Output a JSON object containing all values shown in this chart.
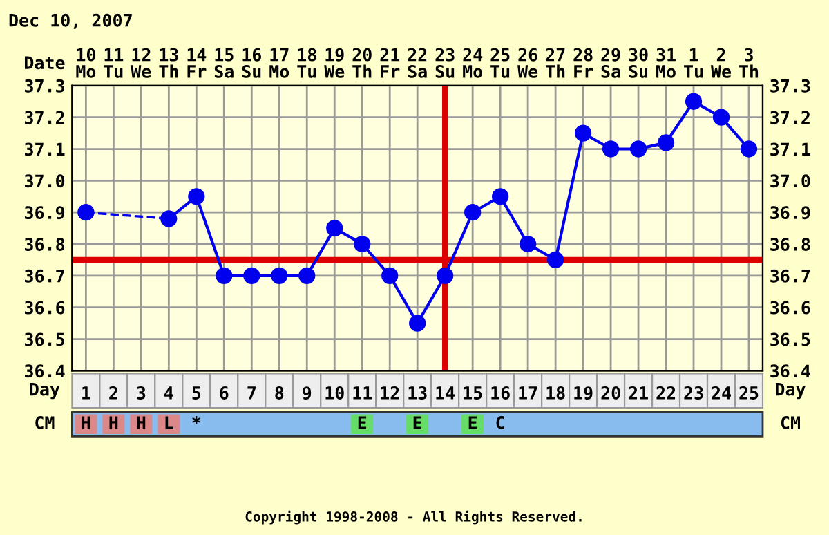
{
  "chart_data": {
    "type": "line",
    "title": "Dec 10, 2007",
    "xlabel": "Day",
    "categories": [
      "1",
      "2",
      "3",
      "4",
      "5",
      "6",
      "7",
      "8",
      "9",
      "10",
      "11",
      "12",
      "13",
      "14",
      "15",
      "16",
      "17",
      "18",
      "19",
      "20",
      "21",
      "22",
      "23",
      "24",
      "25"
    ],
    "series": [
      {
        "color": "#0000ee",
        "values": [
          36.9,
          null,
          null,
          36.88,
          36.95,
          36.7,
          36.7,
          36.7,
          36.7,
          36.85,
          36.8,
          36.7,
          36.55,
          36.7,
          36.9,
          36.95,
          36.8,
          36.75,
          37.15,
          37.1,
          37.1,
          37.12,
          37.25,
          37.2,
          37.1
        ]
      }
    ],
    "ylim": [
      36.4,
      37.3
    ],
    "yticks": [
      36.4,
      36.5,
      36.6,
      36.7,
      36.8,
      36.9,
      {
        "value": 37.0,
        "label": "37.0"
      },
      37.1,
      37.2,
      37.3
    ],
    "y2lim": [
      36.4,
      37.3
    ],
    "y2ticks": [
      36.4,
      36.5,
      36.6,
      36.7,
      36.8,
      36.9,
      {
        "value": 37.0,
        "label": "37.0"
      },
      37.1,
      37.2,
      37.3
    ],
    "ref_lines": [
      {
        "axis": "y",
        "value": 36.75,
        "color": "#dd0000"
      },
      {
        "axis": "x",
        "value": "14",
        "color": "#dd0000"
      }
    ],
    "annotations": [
      "Date",
      "10\nMo",
      "11\nTu",
      "12\nWe",
      "13\nTh",
      "14\nFr",
      "15\nSa",
      "16\nSu",
      "17\nMo",
      "18\nTu",
      "19\nWe",
      "20\nTh",
      "21\nFr",
      "22\nSa",
      "23\nSu",
      "24\nMo",
      "25\nTu",
      "26\nWe",
      "27\nTh",
      "28\nFr",
      "29\nSa",
      "30\nSu",
      "31\nMo",
      "1\nTu",
      "2\nWe",
      "3\nTh",
      "CM",
      "H",
      "H",
      "H",
      "L",
      "*",
      null,
      null,
      null,
      null,
      null,
      "E",
      null,
      "E",
      null,
      "E",
      "C",
      null,
      null,
      null,
      null,
      null,
      null,
      null,
      null,
      null,
      "Copyright 1998-2008 - All Rights Reserved."
    ],
    "grid": true,
    "marker": "circle",
    "line_style": "solid"
  }
}
